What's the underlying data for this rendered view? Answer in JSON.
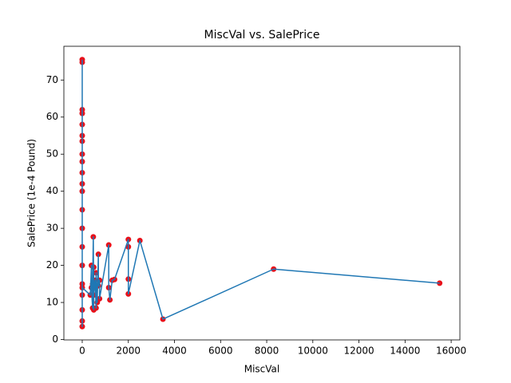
{
  "chart_data": {
    "type": "line",
    "title": "MiscVal vs. SalePrice",
    "xlabel": "MiscVal",
    "ylabel": "SalePrice (1e-4 Pound)",
    "x": [
      0,
      0,
      0,
      0,
      0,
      0,
      0,
      0,
      0,
      0,
      0,
      0,
      0,
      0,
      0,
      0,
      0,
      0,
      0,
      0,
      0,
      0,
      350,
      400,
      400,
      450,
      450,
      480,
      500,
      500,
      500,
      560,
      600,
      600,
      650,
      700,
      700,
      750,
      750,
      1150,
      1150,
      1200,
      1300,
      1400,
      2000,
      2000,
      2000,
      2000,
      2500,
      3500,
      8300,
      15500
    ],
    "series": [
      {
        "name": "SalePrice",
        "color": "#1f77b4",
        "marker_color": "#e8101a",
        "values": [
          75.5,
          3.5,
          74.8,
          5,
          62,
          8,
          61,
          12,
          58,
          15,
          55,
          20,
          53.5,
          25,
          50,
          30,
          48,
          35,
          45,
          40,
          42,
          14,
          12,
          20,
          14,
          8.5,
          15,
          27.7,
          8,
          19.5,
          12,
          16,
          8.5,
          18,
          10,
          23,
          14.5,
          16,
          11,
          25.5,
          14,
          10.7,
          16,
          16.2,
          27,
          25,
          16.3,
          12.3,
          26.7,
          5.5,
          19,
          15.2
        ]
      }
    ],
    "xlim": [
      -796,
      16378
    ],
    "ylim": [
      -0.1,
      79.1
    ],
    "xticks": [
      0,
      2000,
      4000,
      6000,
      8000,
      10000,
      12000,
      14000,
      16000
    ],
    "yticks": [
      0,
      10,
      20,
      30,
      40,
      50,
      60,
      70
    ]
  }
}
